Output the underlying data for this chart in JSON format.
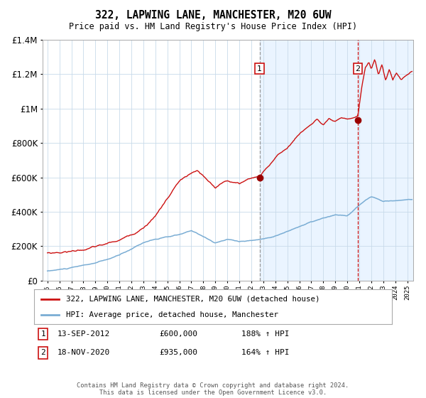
{
  "title": "322, LAPWING LANE, MANCHESTER, M20 6UW",
  "subtitle": "Price paid vs. HM Land Registry's House Price Index (HPI)",
  "legend_line1": "322, LAPWING LANE, MANCHESTER, M20 6UW (detached house)",
  "legend_line2": "HPI: Average price, detached house, Manchester",
  "annotation1_date": "13-SEP-2012",
  "annotation1_price": "£600,000",
  "annotation1_hpi": "188% ↑ HPI",
  "annotation2_date": "18-NOV-2020",
  "annotation2_price": "£935,000",
  "annotation2_hpi": "164% ↑ HPI",
  "sale1_year": 2012.7,
  "sale1_value": 600000,
  "sale2_year": 2020.88,
  "sale2_value": 935000,
  "hpi_color": "#7aadd4",
  "property_color": "#cc1111",
  "marker_color": "#990000",
  "vline1_color": "#999999",
  "vline2_color": "#cc1111",
  "shade_color": "#ddeeff",
  "ylim": [
    0,
    1400000
  ],
  "xlim_start": 1994.6,
  "xlim_end": 2025.5,
  "footer": "Contains HM Land Registry data © Crown copyright and database right 2024.\nThis data is licensed under the Open Government Licence v3.0."
}
